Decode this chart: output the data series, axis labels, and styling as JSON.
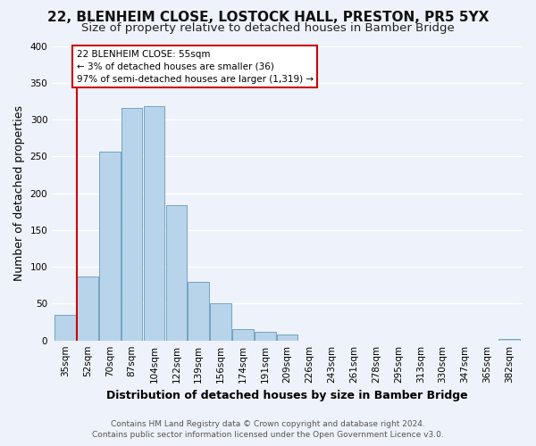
{
  "title": "22, BLENHEIM CLOSE, LOSTOCK HALL, PRESTON, PR5 5YX",
  "subtitle": "Size of property relative to detached houses in Bamber Bridge",
  "xlabel": "Distribution of detached houses by size in Bamber Bridge",
  "ylabel": "Number of detached properties",
  "bin_labels": [
    "35sqm",
    "52sqm",
    "70sqm",
    "87sqm",
    "104sqm",
    "122sqm",
    "139sqm",
    "156sqm",
    "174sqm",
    "191sqm",
    "209sqm",
    "226sqm",
    "243sqm",
    "261sqm",
    "278sqm",
    "295sqm",
    "313sqm",
    "330sqm",
    "347sqm",
    "365sqm",
    "382sqm"
  ],
  "bar_heights": [
    35,
    87,
    256,
    316,
    318,
    184,
    80,
    50,
    15,
    12,
    8,
    0,
    0,
    0,
    0,
    0,
    0,
    0,
    0,
    0,
    2
  ],
  "bar_color": "#b8d4ea",
  "bar_edge_color": "#6699bb",
  "vline_x_index": 1,
  "vline_color": "#cc0000",
  "ylim": [
    0,
    400
  ],
  "yticks": [
    0,
    50,
    100,
    150,
    200,
    250,
    300,
    350,
    400
  ],
  "annotation_title": "22 BLENHEIM CLOSE: 55sqm",
  "annotation_line1": "← 3% of detached houses are smaller (36)",
  "annotation_line2": "97% of semi-detached houses are larger (1,319) →",
  "annotation_box_color": "#ffffff",
  "annotation_box_edge": "#cc0000",
  "footer1": "Contains HM Land Registry data © Crown copyright and database right 2024.",
  "footer2": "Contains public sector information licensed under the Open Government Licence v3.0.",
  "background_color": "#eef2fa",
  "grid_color": "#ffffff",
  "title_fontsize": 11,
  "subtitle_fontsize": 9.5,
  "axis_label_fontsize": 9,
  "tick_fontsize": 7.5,
  "footer_fontsize": 6.5
}
